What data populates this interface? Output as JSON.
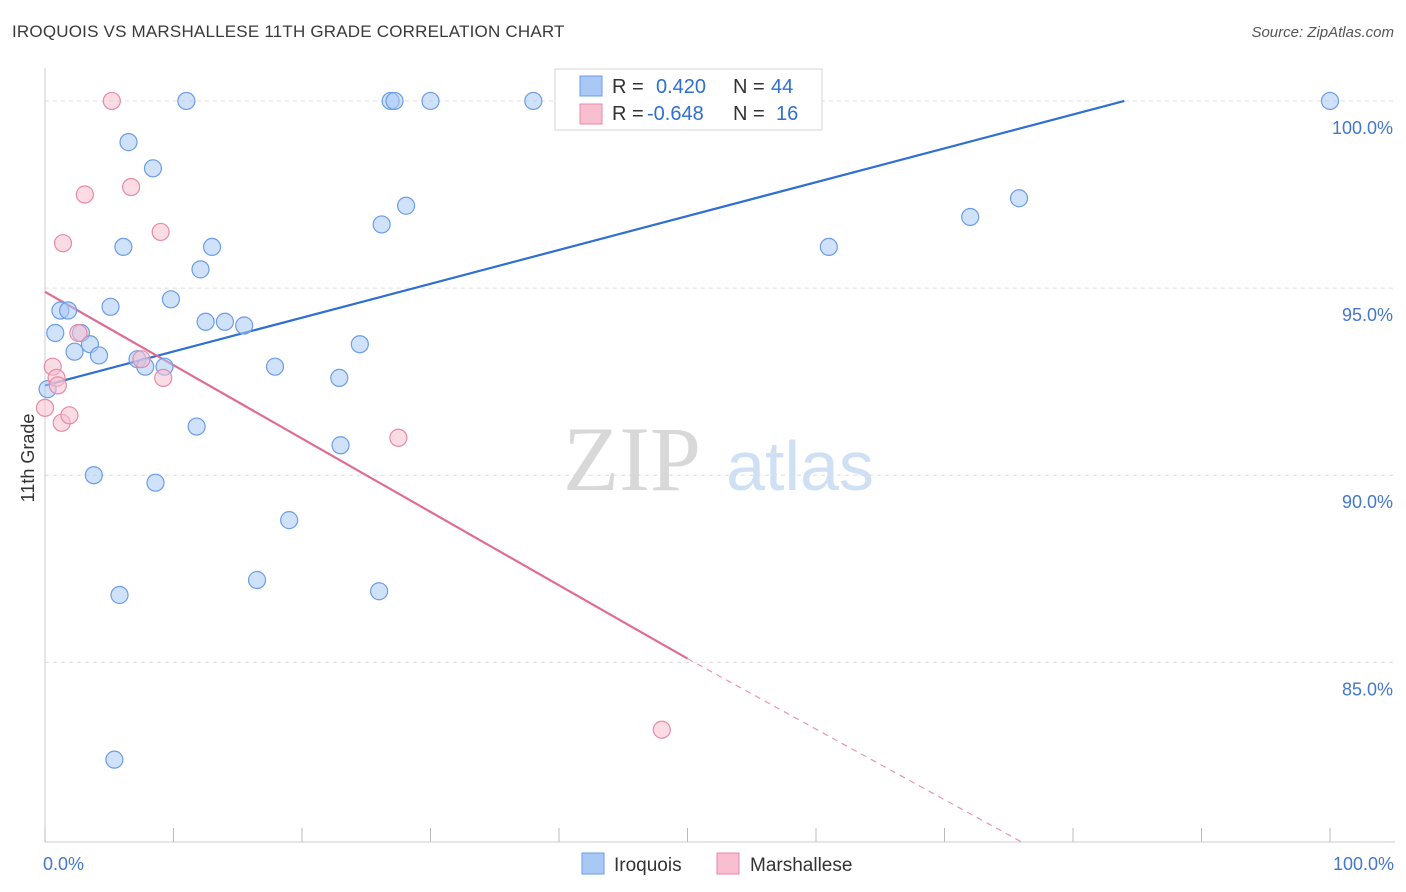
{
  "title": "IROQUOIS VS MARSHALLESE 11TH GRADE CORRELATION CHART",
  "source": "Source: ZipAtlas.com",
  "watermark": {
    "zip": "ZIP",
    "atlas": "atlas"
  },
  "legend_box": {
    "rows": [
      {
        "r_label": "R =",
        "r_value": "0.420",
        "n_label": "N =",
        "n_value": "44"
      },
      {
        "r_label": "R =",
        "r_value": "-0.648",
        "n_label": "N =",
        "n_value": "16"
      }
    ]
  },
  "chart_data": {
    "type": "scatter",
    "xlabel": "",
    "ylabel": "11th Grade",
    "xlim": [
      0,
      100
    ],
    "ylim": [
      80.2,
      100.8
    ],
    "x_tick_labels": [
      {
        "value": 0,
        "label": "0.0%"
      },
      {
        "value": 100,
        "label": "100.0%"
      }
    ],
    "y_tick_labels": [
      {
        "value": 100,
        "label": "100.0%"
      },
      {
        "value": 95,
        "label": "95.0%"
      },
      {
        "value": 90,
        "label": "90.0%"
      },
      {
        "value": 85,
        "label": "85.0%"
      }
    ],
    "grid": true,
    "legend_placement": "bottom-center",
    "series": [
      {
        "name": "Iroquois",
        "color": "#6b9de8",
        "fill": "#aac8f5",
        "trend": {
          "x0": 0,
          "y0": 92.4,
          "x1": 84,
          "y1": 100.0,
          "color": "#2f6fd0"
        },
        "points": [
          [
            0.2,
            92.3
          ],
          [
            0.8,
            93.8
          ],
          [
            1.2,
            94.4
          ],
          [
            1.8,
            94.4
          ],
          [
            2.3,
            93.3
          ],
          [
            2.8,
            93.8
          ],
          [
            3.5,
            93.5
          ],
          [
            4.2,
            93.2
          ],
          [
            3.8,
            90.0
          ],
          [
            5.1,
            94.5
          ],
          [
            5.4,
            82.4
          ],
          [
            5.8,
            86.8
          ],
          [
            6.1,
            96.1
          ],
          [
            6.5,
            98.9
          ],
          [
            7.2,
            93.1
          ],
          [
            7.8,
            92.9
          ],
          [
            8.4,
            98.2
          ],
          [
            8.6,
            89.8
          ],
          [
            9.3,
            92.9
          ],
          [
            9.8,
            94.7
          ],
          [
            11.0,
            100.0
          ],
          [
            11.8,
            91.3
          ],
          [
            12.1,
            95.5
          ],
          [
            12.5,
            94.1
          ],
          [
            13.0,
            96.1
          ],
          [
            14.0,
            94.1
          ],
          [
            15.5,
            94.0
          ],
          [
            16.5,
            87.2
          ],
          [
            17.9,
            92.9
          ],
          [
            19.0,
            88.8
          ],
          [
            22.9,
            92.6
          ],
          [
            23.0,
            90.8
          ],
          [
            24.5,
            93.5
          ],
          [
            26.0,
            86.9
          ],
          [
            26.2,
            96.7
          ],
          [
            26.9,
            100.0
          ],
          [
            27.2,
            100.0
          ],
          [
            28.1,
            97.2
          ],
          [
            30.0,
            100.0
          ],
          [
            38.0,
            100.0
          ],
          [
            61.0,
            96.1
          ],
          [
            72.0,
            96.9
          ],
          [
            75.8,
            97.4
          ],
          [
            100.0,
            100.0
          ]
        ]
      },
      {
        "name": "Marshallese",
        "color": "#e88aa8",
        "fill": "#f7bfd0",
        "trend": {
          "x0": 0,
          "y0": 94.9,
          "x1": 50,
          "y1": 85.1,
          "color": "#e06b95"
        },
        "trend_dashed": {
          "x0": 50,
          "y0": 85.1,
          "x1": 76,
          "y1": 80.2
        },
        "points": [
          [
            0.0,
            91.8
          ],
          [
            0.6,
            92.9
          ],
          [
            0.9,
            92.6
          ],
          [
            1.0,
            92.4
          ],
          [
            1.3,
            91.4
          ],
          [
            1.4,
            96.2
          ],
          [
            1.9,
            91.6
          ],
          [
            2.6,
            93.8
          ],
          [
            3.1,
            97.5
          ],
          [
            5.2,
            100.0
          ],
          [
            6.7,
            97.7
          ],
          [
            7.5,
            93.1
          ],
          [
            9.0,
            96.5
          ],
          [
            9.2,
            92.6
          ],
          [
            27.5,
            91.0
          ],
          [
            48.0,
            83.2
          ]
        ]
      }
    ]
  }
}
